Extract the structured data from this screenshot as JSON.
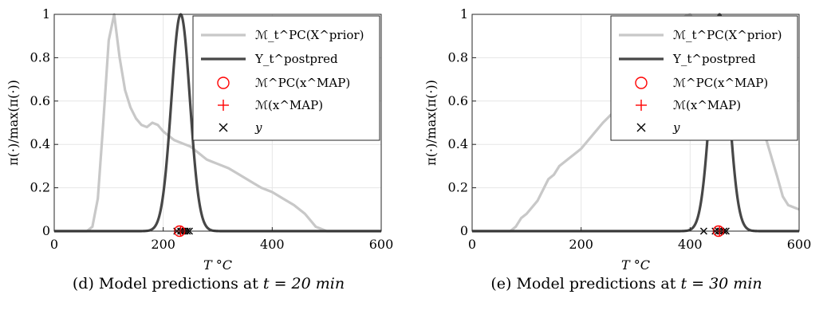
{
  "captions": [
    {
      "text": "(d) Model predictions at",
      "math": "t = 20 min"
    },
    {
      "text": "(e) Model predictions at",
      "math": "t = 30 min"
    }
  ],
  "legend_entries": [
    "ℳ_t^PC(X^prior)",
    "Y_t^postpred",
    "ℳ^PC(x^MAP)",
    "ℳ(x^MAP)",
    "y"
  ],
  "colors": {
    "prior": "#c8c8c8",
    "postpred": "#474747",
    "map": "#ff0000",
    "y": "#000000",
    "grid": "#e6e6e6"
  },
  "chart_data": [
    {
      "type": "line",
      "xlabel": "T °C",
      "ylabel": "π(·)/max(π(·))",
      "xlim": [
        0,
        600
      ],
      "ylim": [
        0,
        1
      ],
      "xticks": [
        "0",
        "200",
        "400",
        "600"
      ],
      "yticks": [
        "0",
        "0.2",
        "0.4",
        "0.6",
        "0.8",
        "1"
      ],
      "grid": true,
      "legend_position": "top-right",
      "series": [
        {
          "name": "ℳ_t^PC(X^prior)",
          "x": [
            0,
            60,
            70,
            80,
            90,
            100,
            110,
            120,
            130,
            140,
            150,
            160,
            170,
            180,
            190,
            200,
            210,
            220,
            230,
            240,
            250,
            260,
            270,
            280,
            290,
            300,
            320,
            340,
            360,
            380,
            400,
            420,
            440,
            460,
            470,
            480,
            490,
            500,
            600
          ],
          "y": [
            0,
            0,
            0.02,
            0.15,
            0.5,
            0.88,
            1.0,
            0.8,
            0.65,
            0.57,
            0.52,
            0.49,
            0.48,
            0.5,
            0.49,
            0.46,
            0.44,
            0.42,
            0.41,
            0.4,
            0.39,
            0.37,
            0.35,
            0.33,
            0.32,
            0.31,
            0.29,
            0.26,
            0.23,
            0.2,
            0.18,
            0.15,
            0.12,
            0.08,
            0.05,
            0.02,
            0.01,
            0,
            0
          ]
        },
        {
          "name": "Y_t^postpred",
          "gaussian": {
            "mean": 232,
            "sd": 17
          },
          "x": [
            0,
            600
          ],
          "y": [
            0,
            0
          ]
        },
        {
          "name": "ℳ^PC(x^MAP)",
          "x": [
            230
          ],
          "y": [
            0
          ]
        },
        {
          "name": "ℳ(x^MAP)",
          "x": [
            232
          ],
          "y": [
            0
          ]
        },
        {
          "name": "y",
          "x": [
            225,
            232,
            236,
            240,
            244,
            248
          ],
          "y": [
            0,
            0,
            0,
            0,
            0,
            0
          ]
        }
      ]
    },
    {
      "type": "line",
      "xlabel": "T °C",
      "ylabel": "π(·)/max(π(·))",
      "xlim": [
        0,
        600
      ],
      "ylim": [
        0,
        1
      ],
      "xticks": [
        "0",
        "200",
        "400",
        "600"
      ],
      "yticks": [
        "0",
        "0.2",
        "0.4",
        "0.6",
        "0.8",
        "1"
      ],
      "grid": true,
      "legend_position": "top-right",
      "series": [
        {
          "name": "ℳ_t^PC(X^prior)",
          "x": [
            0,
            70,
            80,
            90,
            100,
            120,
            140,
            150,
            160,
            180,
            190,
            200,
            220,
            240,
            260,
            280,
            300,
            320,
            330,
            340,
            360,
            380,
            390,
            400,
            410,
            420,
            430,
            440,
            450,
            460,
            470,
            480,
            490,
            500,
            510,
            520,
            540,
            560,
            570,
            580,
            590,
            600
          ],
          "y": [
            0,
            0,
            0.02,
            0.06,
            0.08,
            0.14,
            0.24,
            0.26,
            0.3,
            0.34,
            0.36,
            0.38,
            0.44,
            0.5,
            0.55,
            0.62,
            0.7,
            0.78,
            0.82,
            0.86,
            0.92,
            0.97,
            0.99,
            1.0,
            0.96,
            0.93,
            0.97,
            0.96,
            0.93,
            0.9,
            0.86,
            0.82,
            0.8,
            0.78,
            0.72,
            0.6,
            0.42,
            0.25,
            0.16,
            0.12,
            0.11,
            0.1
          ]
        },
        {
          "name": "Y_t^postpred",
          "gaussian": {
            "mean": 454,
            "sd": 17
          },
          "x": [
            0,
            600
          ],
          "y": [
            0,
            0
          ]
        },
        {
          "name": "ℳ^PC(x^MAP)",
          "x": [
            452
          ],
          "y": [
            0
          ]
        },
        {
          "name": "ℳ(x^MAP)",
          "x": [
            454
          ],
          "y": [
            0
          ]
        },
        {
          "name": "y",
          "x": [
            425,
            446,
            452,
            456,
            462,
            466
          ],
          "y": [
            0,
            0,
            0,
            0,
            0,
            0
          ]
        }
      ]
    }
  ]
}
